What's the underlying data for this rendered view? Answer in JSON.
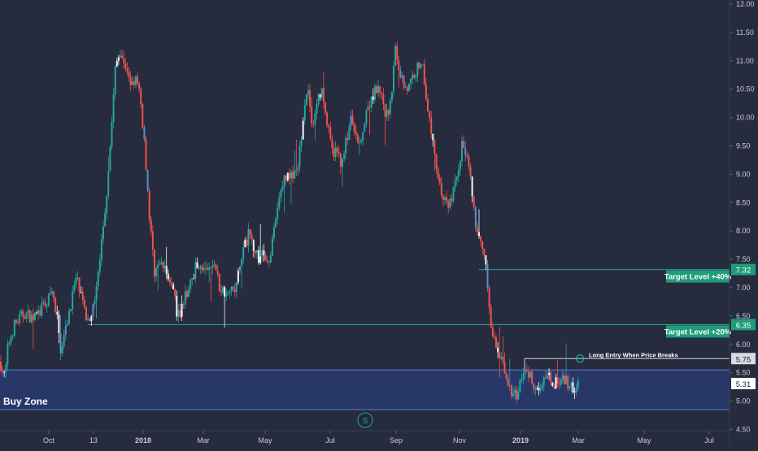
{
  "colors": {
    "background": "#262b3e",
    "bullish": "#26a69a",
    "bearish": "#ef5350",
    "neutral": "#f5f5f5",
    "blue": "#5b8fc7",
    "buy_zone_fill": "#283a70",
    "buy_zone_border": "#5b7fd0",
    "target_line": "#26a69a",
    "entry_line": "#cfd3dc",
    "axis_text": "#c9ccd6",
    "target_label_bg": "#1f9c7a"
  },
  "chart_data": {
    "type": "candlestick",
    "title": "",
    "ylim": [
      4.5,
      12.0
    ],
    "y_ticks": [
      "12.00",
      "11.50",
      "11.00",
      "10.50",
      "10.00",
      "9.50",
      "9.00",
      "8.50",
      "8.00",
      "7.50",
      "7.00",
      "6.50",
      "6.00",
      "5.50",
      "5.00",
      "4.50"
    ],
    "x_ticks": [
      {
        "label": "Oct",
        "bold": false
      },
      {
        "label": "13",
        "bold": false
      },
      {
        "label": "2018",
        "bold": true
      },
      {
        "label": "Mar",
        "bold": false
      },
      {
        "label": "May",
        "bold": false
      },
      {
        "label": "Jul",
        "bold": false
      },
      {
        "label": "Sep",
        "bold": false
      },
      {
        "label": "Nov",
        "bold": false
      },
      {
        "label": "2019",
        "bold": true
      },
      {
        "label": "Mar",
        "bold": false
      },
      {
        "label": "May",
        "bold": false
      },
      {
        "label": "Jul",
        "bold": false
      }
    ],
    "price_path": [
      [
        0,
        5.7
      ],
      [
        6,
        5.4
      ],
      [
        10,
        6.0
      ],
      [
        18,
        6.35
      ],
      [
        30,
        6.55
      ],
      [
        42,
        6.45
      ],
      [
        50,
        6.6
      ],
      [
        58,
        6.75
      ],
      [
        64,
        6.9
      ],
      [
        70,
        6.5
      ],
      [
        74,
        5.9
      ],
      [
        80,
        6.2
      ],
      [
        88,
        6.8
      ],
      [
        94,
        7.2
      ],
      [
        100,
        6.8
      ],
      [
        106,
        6.45
      ],
      [
        112,
        6.55
      ],
      [
        118,
        6.9
      ],
      [
        124,
        7.7
      ],
      [
        130,
        8.5
      ],
      [
        136,
        9.6
      ],
      [
        142,
        10.9
      ],
      [
        148,
        11.2
      ],
      [
        154,
        10.8
      ],
      [
        160,
        10.6
      ],
      [
        166,
        10.7
      ],
      [
        172,
        10.4
      ],
      [
        178,
        9.5
      ],
      [
        184,
        8.2
      ],
      [
        190,
        7.3
      ],
      [
        196,
        7.4
      ],
      [
        202,
        7.35
      ],
      [
        208,
        7.15
      ],
      [
        214,
        6.9
      ],
      [
        218,
        6.5
      ],
      [
        222,
        6.6
      ],
      [
        228,
        6.85
      ],
      [
        234,
        7.05
      ],
      [
        240,
        7.35
      ],
      [
        246,
        7.45
      ],
      [
        252,
        7.3
      ],
      [
        258,
        7.3
      ],
      [
        264,
        7.45
      ],
      [
        270,
        7.0
      ],
      [
        276,
        6.95
      ],
      [
        282,
        7.05
      ],
      [
        288,
        6.9
      ],
      [
        294,
        7.3
      ],
      [
        300,
        7.7
      ],
      [
        306,
        7.95
      ],
      [
        312,
        7.75
      ],
      [
        318,
        7.5
      ],
      [
        324,
        7.6
      ],
      [
        330,
        7.45
      ],
      [
        336,
        7.9
      ],
      [
        342,
        8.45
      ],
      [
        348,
        8.9
      ],
      [
        354,
        9.0
      ],
      [
        360,
        8.95
      ],
      [
        366,
        9.05
      ],
      [
        372,
        9.9
      ],
      [
        378,
        10.6
      ],
      [
        384,
        9.8
      ],
      [
        390,
        10.3
      ],
      [
        396,
        10.45
      ],
      [
        402,
        9.9
      ],
      [
        408,
        9.4
      ],
      [
        414,
        9.4
      ],
      [
        420,
        9.2
      ],
      [
        426,
        9.6
      ],
      [
        432,
        10.0
      ],
      [
        438,
        9.6
      ],
      [
        444,
        9.7
      ],
      [
        450,
        10.0
      ],
      [
        456,
        10.3
      ],
      [
        462,
        10.5
      ],
      [
        468,
        10.4
      ],
      [
        474,
        10.0
      ],
      [
        480,
        10.2
      ],
      [
        486,
        11.2
      ],
      [
        490,
        10.9
      ],
      [
        496,
        10.6
      ],
      [
        502,
        10.5
      ],
      [
        508,
        10.75
      ],
      [
        514,
        10.9
      ],
      [
        520,
        10.95
      ],
      [
        526,
        10.1
      ],
      [
        532,
        9.6
      ],
      [
        538,
        9.0
      ],
      [
        544,
        8.6
      ],
      [
        550,
        8.45
      ],
      [
        556,
        8.6
      ],
      [
        562,
        9.0
      ],
      [
        568,
        9.5
      ],
      [
        574,
        9.35
      ],
      [
        580,
        8.7
      ],
      [
        586,
        7.9
      ],
      [
        592,
        7.7
      ],
      [
        598,
        7.3
      ],
      [
        602,
        6.6
      ],
      [
        606,
        6.1
      ],
      [
        612,
        5.9
      ],
      [
        618,
        5.6
      ],
      [
        624,
        5.35
      ],
      [
        630,
        5.05
      ],
      [
        636,
        5.15
      ],
      [
        640,
        5.35
      ],
      [
        646,
        5.5
      ],
      [
        652,
        5.45
      ],
      [
        658,
        5.25
      ],
      [
        664,
        5.28
      ],
      [
        670,
        5.35
      ],
      [
        676,
        5.4
      ],
      [
        682,
        5.32
      ],
      [
        688,
        5.3
      ],
      [
        694,
        5.38
      ],
      [
        700,
        5.28
      ],
      [
        706,
        5.2
      ],
      [
        712,
        5.31
      ]
    ],
    "buy_zone": {
      "label": "Buy Zone",
      "low": 4.85,
      "high": 5.55
    },
    "levels": [
      {
        "name": "target-level-40",
        "label": "Target Level +40%",
        "price": 7.32,
        "price_label": "7.32",
        "style": "target"
      },
      {
        "name": "target-level-20",
        "label": "Target Level +20%",
        "price": 6.35,
        "price_label": "6.35",
        "style": "target"
      },
      {
        "name": "entry-level",
        "label": "Long Entry When Price Breaks",
        "price": 5.75,
        "price_label": "5.75",
        "style": "entry"
      }
    ],
    "last_price": {
      "price": 5.31,
      "label": "5.31"
    },
    "badge": "S"
  }
}
